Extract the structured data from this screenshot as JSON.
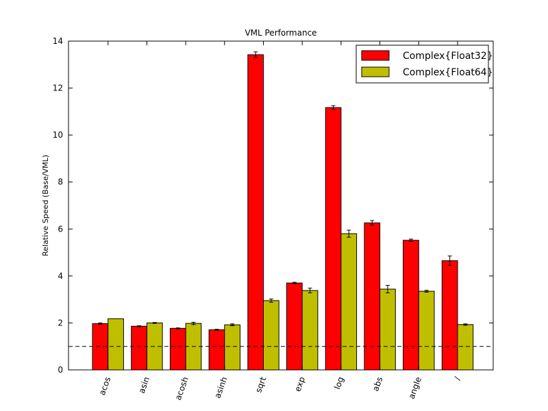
{
  "chart_data": {
    "type": "bar",
    "title": "VML Performance",
    "xlabel": "",
    "ylabel": "Relative Speed (Base/VML)",
    "ylim": [
      0,
      14
    ],
    "yticks": [
      0,
      2,
      4,
      6,
      8,
      10,
      12,
      14
    ],
    "categories": [
      "acos",
      "asin",
      "acosh",
      "asinh",
      "sqrt",
      "exp",
      "log",
      "abs",
      "angle",
      "/"
    ],
    "series": [
      {
        "name": "Complex{Float32}",
        "color": "#ff0000",
        "values": [
          1.97,
          1.86,
          1.77,
          1.71,
          13.42,
          3.7,
          11.17,
          6.26,
          5.52,
          4.65
        ],
        "errors": [
          0.03,
          0.02,
          0.02,
          0.02,
          0.12,
          0.03,
          0.08,
          0.1,
          0.05,
          0.2
        ]
      },
      {
        "name": "Complex{Float64}",
        "color": "#bfbf00",
        "values": [
          2.18,
          2.0,
          1.98,
          1.92,
          2.95,
          3.38,
          5.8,
          3.44,
          3.35,
          1.93
        ],
        "errors": [
          0.0,
          0.02,
          0.05,
          0.04,
          0.07,
          0.1,
          0.15,
          0.16,
          0.04,
          0.03
        ]
      }
    ],
    "reference_line": 1.0,
    "legend_position": "top-right",
    "grid": false
  }
}
